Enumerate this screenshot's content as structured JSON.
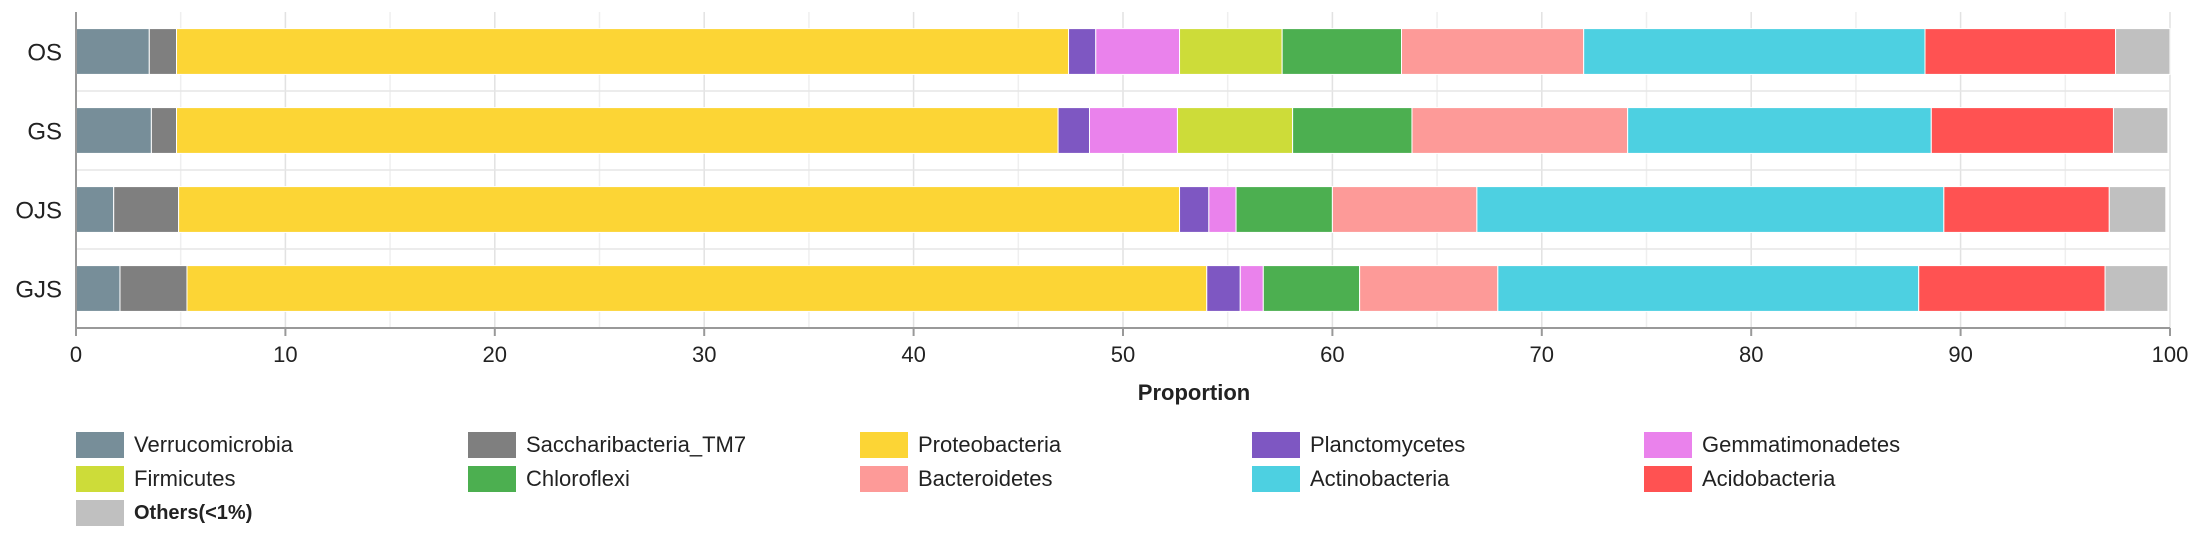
{
  "chart_data": {
    "type": "bar",
    "orientation": "horizontal",
    "stacked": true,
    "xlabel": "Proportion",
    "xlim": [
      0,
      100
    ],
    "xticks": [
      "0",
      "10",
      "20",
      "30",
      "40",
      "50",
      "60",
      "70",
      "80",
      "90",
      "100"
    ],
    "categories": [
      "OS",
      "GS",
      "OJS",
      "GJS"
    ],
    "grid": "vertical",
    "legend_position": "bottom",
    "series": [
      {
        "name": "Verrucomicrobia",
        "color": "#778e99",
        "values": [
          3.5,
          3.6,
          1.8,
          2.1
        ]
      },
      {
        "name": "Saccharibacteria_TM7",
        "color": "#7f7f7f",
        "values": [
          1.3,
          1.2,
          3.1,
          3.2
        ]
      },
      {
        "name": "Proteobacteria",
        "color": "#fcd535",
        "values": [
          42.6,
          42.1,
          47.8,
          48.7
        ]
      },
      {
        "name": "Planctomycetes",
        "color": "#7e57c2",
        "values": [
          1.3,
          1.5,
          1.4,
          1.6
        ]
      },
      {
        "name": "Gemmatimonadetes",
        "color": "#ea82ec",
        "values": [
          4.0,
          4.2,
          1.3,
          1.1
        ]
      },
      {
        "name": "Firmicutes",
        "color": "#cddc39",
        "values": [
          4.9,
          5.5,
          0,
          0
        ]
      },
      {
        "name": "Chloroflexi",
        "color": "#4caf50",
        "values": [
          5.7,
          5.7,
          4.6,
          4.6
        ]
      },
      {
        "name": "Bacteroidetes",
        "color": "#fd9a98",
        "values": [
          8.7,
          10.3,
          6.9,
          6.6
        ]
      },
      {
        "name": "Actinobacteria",
        "color": "#4dd0e1",
        "values": [
          16.3,
          14.5,
          22.3,
          20.1
        ]
      },
      {
        "name": "Acidobacteria",
        "color": "#ff5252",
        "values": [
          9.1,
          8.7,
          7.9,
          8.9
        ]
      },
      {
        "name": "Others(<1%)",
        "color": "#c0c0c0",
        "values": [
          2.6,
          2.6,
          2.7,
          3.0
        ]
      }
    ]
  }
}
